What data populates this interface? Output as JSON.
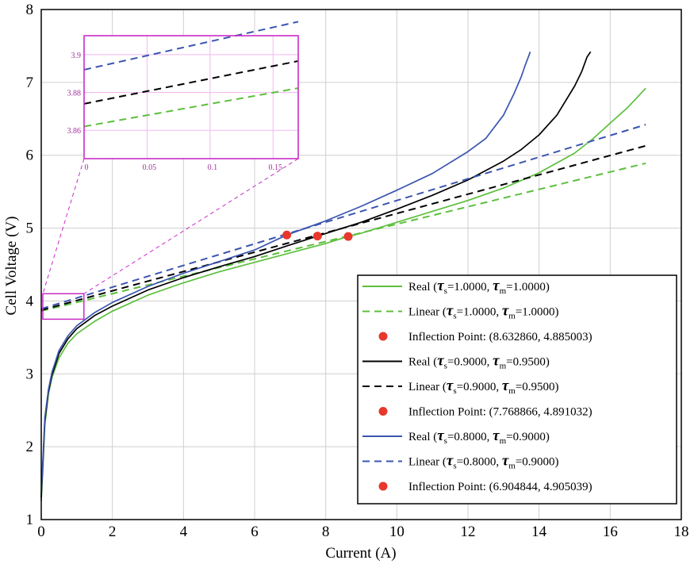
{
  "chart_data": {
    "type": "line",
    "title": "",
    "xlabel": "Current (A)",
    "ylabel": "Cell Voltage (V)",
    "xlim": [
      0,
      18
    ],
    "ylim": [
      1,
      8
    ],
    "xticks": [
      "0",
      "2",
      "4",
      "6",
      "8",
      "10",
      "12",
      "14",
      "16",
      "18"
    ],
    "yticks": [
      "1",
      "2",
      "3",
      "4",
      "5",
      "6",
      "7",
      "8"
    ],
    "grid": true,
    "series": [
      {
        "name": "Real (τs=1.0000, τm=1.0000)",
        "style": "solid",
        "color": "#5cbf3c",
        "x": [
          0,
          0.05,
          0.1,
          0.2,
          0.3,
          0.5,
          0.75,
          1,
          1.5,
          2,
          3,
          4,
          5,
          6,
          7,
          8,
          8.63,
          9,
          10,
          11,
          12,
          13,
          14,
          15,
          15.5,
          16,
          16.5,
          17
        ],
        "y": [
          1.25,
          1.75,
          2.3,
          2.72,
          2.95,
          3.22,
          3.42,
          3.55,
          3.72,
          3.86,
          4.08,
          4.25,
          4.4,
          4.53,
          4.66,
          4.79,
          4.885,
          4.93,
          5.08,
          5.23,
          5.38,
          5.55,
          5.76,
          6.03,
          6.22,
          6.44,
          6.66,
          6.92
        ]
      },
      {
        "name": "Linear (τs=1.0000, τm=1.0000)",
        "style": "dashed",
        "color": "#5cbf3c",
        "x": [
          0,
          17
        ],
        "y": [
          3.862,
          5.89
        ]
      },
      {
        "name": "Inflection Point: (8.632860, 4.885003)",
        "style": "marker",
        "color": "#e8372c",
        "x": [
          8.63286
        ],
        "y": [
          4.885003
        ]
      },
      {
        "name": "Real (τs=0.9000, τm=0.9500)",
        "style": "solid",
        "color": "#000000",
        "x": [
          0,
          0.05,
          0.1,
          0.2,
          0.3,
          0.5,
          0.75,
          1,
          1.5,
          2,
          3,
          4,
          5,
          6,
          7,
          7.77,
          9,
          10,
          11,
          12,
          13,
          13.5,
          14,
          14.5,
          15,
          15.2,
          15.35,
          15.45
        ],
        "y": [
          1.3,
          1.8,
          2.35,
          2.75,
          2.98,
          3.28,
          3.48,
          3.62,
          3.8,
          3.93,
          4.15,
          4.32,
          4.47,
          4.61,
          4.77,
          4.891,
          5.08,
          5.26,
          5.45,
          5.66,
          5.92,
          6.08,
          6.28,
          6.55,
          6.95,
          7.15,
          7.35,
          7.42
        ]
      },
      {
        "name": "Linear (τs=0.9000, τm=0.9500)",
        "style": "dashed",
        "color": "#000000",
        "x": [
          0,
          17
        ],
        "y": [
          3.874,
          6.13
        ]
      },
      {
        "name": "Inflection Point: (7.768866, 4.891032)",
        "style": "marker",
        "color": "#e8372c",
        "x": [
          7.768866
        ],
        "y": [
          4.891032
        ]
      },
      {
        "name": "Real (τs=0.8000, τm=0.9000)",
        "style": "solid",
        "color": "#3b55b0",
        "x": [
          0,
          0.05,
          0.1,
          0.2,
          0.3,
          0.5,
          0.75,
          1,
          1.5,
          2,
          3,
          4,
          5,
          6,
          6.9,
          8,
          9,
          10,
          11,
          12,
          12.5,
          13,
          13.3,
          13.5,
          13.6,
          13.7,
          13.75
        ],
        "y": [
          1.35,
          1.85,
          2.4,
          2.78,
          3.02,
          3.32,
          3.52,
          3.66,
          3.84,
          3.98,
          4.2,
          4.38,
          4.54,
          4.7,
          4.905,
          5.1,
          5.3,
          5.52,
          5.75,
          6.05,
          6.23,
          6.55,
          6.85,
          7.08,
          7.22,
          7.35,
          7.42
        ]
      },
      {
        "name": "Linear (τs=0.8000, τm=0.9000)",
        "style": "dashed",
        "color": "#3b55b0",
        "x": [
          0,
          17
        ],
        "y": [
          3.892,
          6.42
        ]
      },
      {
        "name": "Inflection Point: (6.904844, 4.905039)",
        "style": "marker",
        "color": "#e8372c",
        "x": [
          6.904844
        ],
        "y": [
          4.905039
        ]
      }
    ],
    "inset": {
      "zoom_region": {
        "xlim": [
          0,
          1.2
        ],
        "ylim": [
          3.75,
          4.1
        ]
      },
      "xlim": [
        0,
        0.17
      ],
      "ylim": [
        3.845,
        3.91
      ],
      "xticks": [
        "0",
        "0.05",
        "0.1",
        "0.15"
      ],
      "yticks": [
        "3.86",
        "3.88",
        "3.9"
      ],
      "frame_color": "#c82cc8",
      "lines": [
        {
          "color": "#3b55b0",
          "x": [
            0,
            0.17
          ],
          "y": [
            3.892,
            3.9174
          ]
        },
        {
          "color": "#000000",
          "x": [
            0,
            0.17
          ],
          "y": [
            3.874,
            3.8966
          ]
        },
        {
          "color": "#5cbf3c",
          "x": [
            0,
            0.17
          ],
          "y": [
            3.862,
            3.8823
          ]
        }
      ]
    },
    "legend": {
      "position": "bottom-right",
      "entries": [
        {
          "kind": "line",
          "style": "solid",
          "color": "#5cbf3c",
          "prefix": "Real (",
          "ts": "=1.0000,",
          "tm": "=1.0000)"
        },
        {
          "kind": "line",
          "style": "dashed",
          "color": "#5cbf3c",
          "prefix": "Linear (",
          "ts": "=1.0000,",
          "tm": "=1.0000)"
        },
        {
          "kind": "marker",
          "color": "#e8372c",
          "text": "Inflection Point: (8.632860, 4.885003)"
        },
        {
          "kind": "line",
          "style": "solid",
          "color": "#000000",
          "prefix": "Real (",
          "ts": "=0.9000,",
          "tm": "=0.9500)"
        },
        {
          "kind": "line",
          "style": "dashed",
          "color": "#000000",
          "prefix": "Linear (",
          "ts": "=0.9000,",
          "tm": "=0.9500)"
        },
        {
          "kind": "marker",
          "color": "#e8372c",
          "text": "Inflection Point: (7.768866, 4.891032)"
        },
        {
          "kind": "line",
          "style": "solid",
          "color": "#3b55b0",
          "prefix": "Real (",
          "ts": "=0.8000,",
          "tm": "=0.9000)"
        },
        {
          "kind": "line",
          "style": "dashed",
          "color": "#3b55b0",
          "prefix": "Linear (",
          "ts": "=0.8000,",
          "tm": "=0.9000)"
        },
        {
          "kind": "marker",
          "color": "#e8372c",
          "text": "Inflection Point: (6.904844, 4.905039)"
        }
      ]
    }
  }
}
